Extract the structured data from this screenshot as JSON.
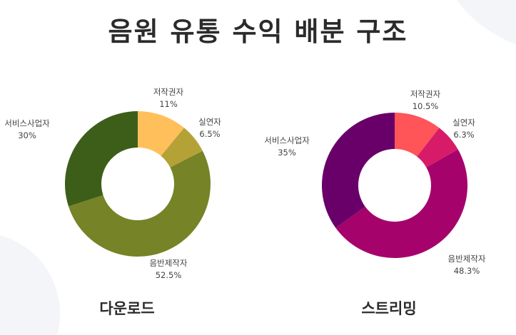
{
  "title": "음원 유통 수익 배분 구조",
  "chart_data": [
    {
      "type": "pie",
      "caption": "다운로드",
      "categories": [
        "저작권자",
        "실연자",
        "음반제작자",
        "서비스사업자"
      ],
      "values": [
        11,
        6.5,
        52.5,
        30
      ],
      "value_labels": [
        "11%",
        "6.5%",
        "52.5%",
        "30%"
      ],
      "colors": [
        "#ffc05c",
        "#b5a237",
        "#768326",
        "#3d5e19"
      ]
    },
    {
      "type": "pie",
      "caption": "스트리밍",
      "categories": [
        "저작권자",
        "실연자",
        "음반제작자",
        "서비스사업자"
      ],
      "values": [
        10.5,
        6.3,
        48.3,
        35
      ],
      "value_labels": [
        "10.5%",
        "6.3%",
        "48.3%",
        "35%"
      ],
      "colors": [
        "#ff5558",
        "#d81b69",
        "#a5026c",
        "#690069"
      ]
    }
  ]
}
